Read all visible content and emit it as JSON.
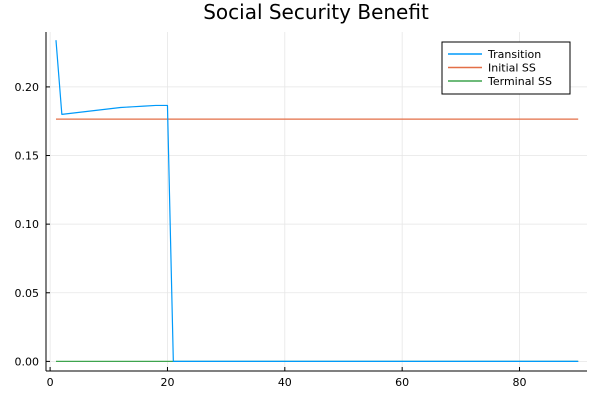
{
  "chart_data": {
    "type": "line",
    "title": "Social Security Benefit",
    "xlabel": "",
    "ylabel": "",
    "xlim": [
      -0.7,
      91.5
    ],
    "ylim": [
      -0.007,
      0.24
    ],
    "x_ticks": [
      0,
      20,
      40,
      60,
      80
    ],
    "y_ticks": [
      0.0,
      0.05,
      0.1,
      0.15,
      0.2
    ],
    "y_tick_labels": [
      "0.00",
      "0.05",
      "0.10",
      "0.15",
      "0.20"
    ],
    "grid": true,
    "legend_position": "top-right",
    "series": [
      {
        "name": "Transition",
        "color": "#009AFA",
        "x": [
          1,
          2,
          4,
          6,
          8,
          10,
          12,
          14,
          16,
          18,
          20,
          21,
          22,
          30,
          40,
          50,
          60,
          70,
          80,
          90
        ],
        "y": [
          0.234,
          0.18,
          0.181,
          0.182,
          0.183,
          0.184,
          0.185,
          0.1855,
          0.186,
          0.1865,
          0.1865,
          0.0,
          0.0,
          0.0,
          0.0,
          0.0,
          0.0,
          0.0,
          0.0,
          0.0
        ]
      },
      {
        "name": "Initial SS",
        "color": "#E36F47",
        "x": [
          1,
          90
        ],
        "y": [
          0.1765,
          0.1765
        ]
      },
      {
        "name": "Terminal SS",
        "color": "#3EA44E",
        "x": [
          1,
          90
        ],
        "y": [
          0.0,
          0.0
        ]
      }
    ]
  }
}
